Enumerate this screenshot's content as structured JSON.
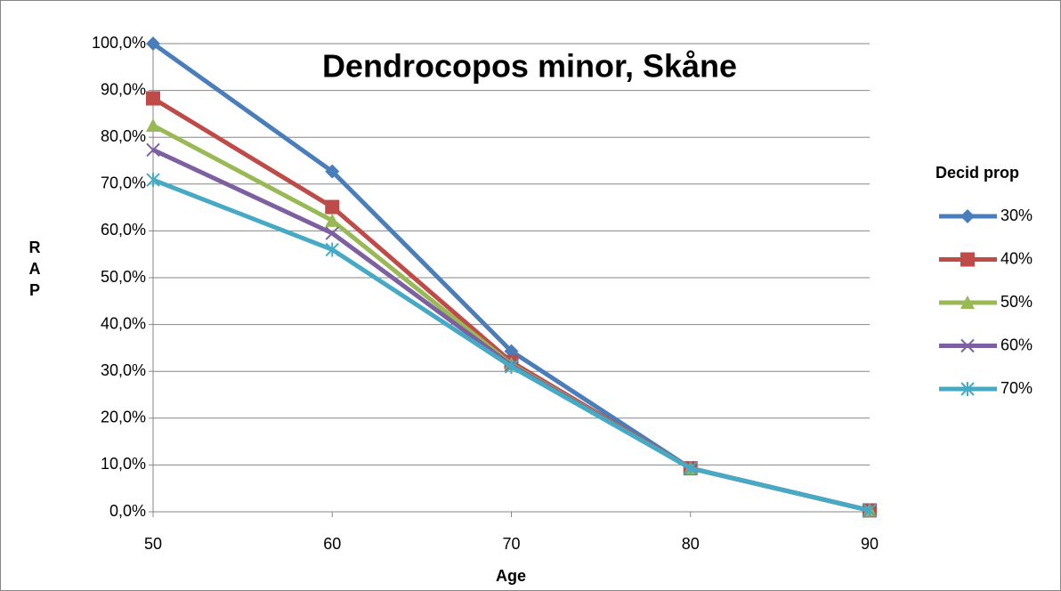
{
  "chart_data": {
    "type": "line",
    "title": "Dendrocopos minor, Skåne",
    "x_label": "Age",
    "y_label": "RAP",
    "legend_title": "Decid prop",
    "x": [
      50,
      60,
      70,
      80,
      90
    ],
    "xlim": [
      50,
      90
    ],
    "xticks": [
      50,
      60,
      70,
      80,
      90
    ],
    "ylim": [
      0,
      100
    ],
    "yticks": [
      {
        "value": 0,
        "label": "0,0%"
      },
      {
        "value": 10,
        "label": "10,0%"
      },
      {
        "value": 20,
        "label": "20,0%"
      },
      {
        "value": 30,
        "label": "30,0%"
      },
      {
        "value": 40,
        "label": "40,0%"
      },
      {
        "value": 50,
        "label": "50,0%"
      },
      {
        "value": 60,
        "label": "60,0%"
      },
      {
        "value": 70,
        "label": "70,0%"
      },
      {
        "value": 80,
        "label": "80,0%"
      },
      {
        "value": 90,
        "label": "90,0%"
      },
      {
        "value": 100,
        "label": "100,0%"
      }
    ],
    "grid": true,
    "legend": "right",
    "series": [
      {
        "name": "30%",
        "color": "#4a7ebb",
        "marker": "diamond",
        "values": [
          100,
          72.7,
          34.3,
          9.3,
          0.3
        ]
      },
      {
        "name": "40%",
        "color": "#be4b48",
        "marker": "square",
        "values": [
          88.3,
          65.1,
          32.0,
          9.3,
          0.3
        ]
      },
      {
        "name": "50%",
        "color": "#98b954",
        "marker": "triangle",
        "values": [
          82.5,
          62.2,
          31.5,
          9.3,
          0.3
        ]
      },
      {
        "name": "60%",
        "color": "#7d60a0",
        "marker": "x",
        "values": [
          77.3,
          59.5,
          31.3,
          9.3,
          0.3
        ]
      },
      {
        "name": "70%",
        "color": "#46aac5",
        "marker": "star",
        "values": [
          70.9,
          56.0,
          31.0,
          9.3,
          0.3
        ]
      }
    ]
  }
}
